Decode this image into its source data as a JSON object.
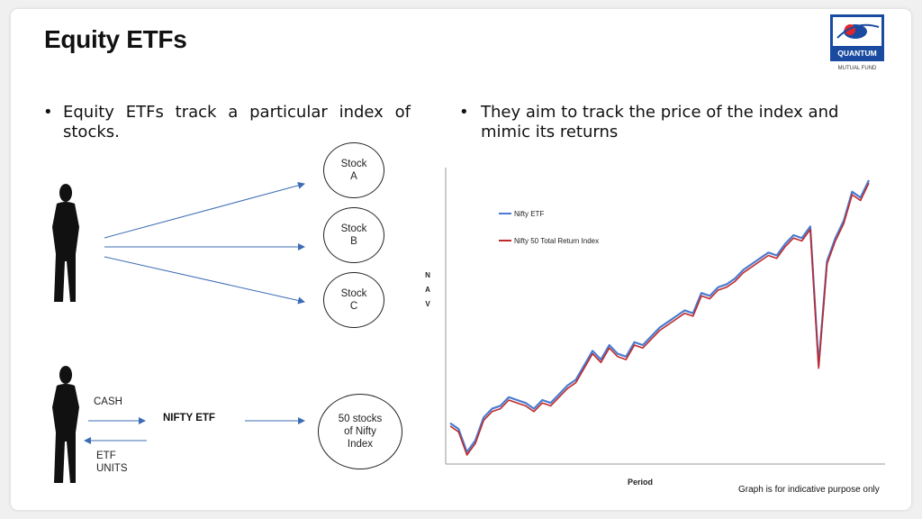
{
  "slide": {
    "title": "Equity ETFs",
    "logo": {
      "line1": "QUANTUM",
      "line2": "MUTUAL FUND",
      "icon": "quantum-logo-icon"
    }
  },
  "bullets": {
    "left": "Equity ETFs track a particular index of stocks.",
    "right": "They aim to track the price of the index and mimic its returns",
    "marker": "•"
  },
  "diagram_top": {
    "stocks": [
      {
        "line1": "Stock",
        "line2": "A"
      },
      {
        "line1": "Stock",
        "line2": "B"
      },
      {
        "line1": "Stock",
        "line2": "C"
      }
    ],
    "person_icon": "person-silhouette-icon"
  },
  "diagram_bottom": {
    "cash_label": "CASH",
    "etf_units_line1": "ETF",
    "etf_units_line2": "UNITS",
    "nifty_etf_label": "NIFTY ETF",
    "nifty_index_line1": "50 stocks",
    "nifty_index_line2": "of Nifty",
    "nifty_index_line3": "Index",
    "person_icon": "person-silhouette-icon"
  },
  "chart_data": {
    "type": "line",
    "title": "",
    "xlabel": "Period",
    "ylabel": "N A V",
    "ylabel_letters": [
      "N",
      "A",
      "V"
    ],
    "legend_position": "top-left",
    "grid": false,
    "ylim": [
      0,
      100
    ],
    "x": [
      0,
      2,
      4,
      6,
      8,
      10,
      12,
      14,
      16,
      18,
      20,
      22,
      24,
      26,
      28,
      30,
      32,
      34,
      36,
      38,
      40,
      42,
      44,
      46,
      48,
      50,
      52,
      54,
      56,
      58,
      60,
      62,
      64,
      66,
      68,
      70,
      72,
      74,
      76,
      78,
      80,
      82,
      84,
      86,
      88,
      90,
      92,
      94,
      96,
      98,
      100
    ],
    "series": [
      {
        "name": "Nifty ETF",
        "color": "#4a7bd0",
        "values": [
          20,
          18,
          10,
          14,
          22,
          25,
          26,
          29,
          28,
          27,
          25,
          28,
          27,
          30,
          33,
          35,
          40,
          45,
          42,
          47,
          44,
          43,
          48,
          47,
          50,
          53,
          55,
          57,
          59,
          58,
          65,
          64,
          67,
          68,
          70,
          73,
          75,
          77,
          79,
          78,
          82,
          85,
          84,
          88,
          40,
          76,
          84,
          90,
          100,
          98,
          104
        ]
      },
      {
        "name": "Nifty 50 Total Return Index",
        "color": "#c0292b",
        "values": [
          19,
          17,
          9,
          13,
          21,
          24,
          25,
          28,
          27,
          26,
          24,
          27,
          26,
          29,
          32,
          34,
          39,
          44,
          41,
          46,
          43,
          42,
          47,
          46,
          49,
          52,
          54,
          56,
          58,
          57,
          64,
          63,
          66,
          67,
          69,
          72,
          74,
          76,
          78,
          77,
          81,
          84,
          83,
          87,
          39,
          75,
          83,
          89,
          99,
          97,
          103
        ]
      }
    ]
  },
  "colors": {
    "arrow": "#3b6cb5",
    "red_line": "#c0292b",
    "blue_line": "#4a7bd0"
  },
  "caption": "Graph is for indicative purpose only"
}
